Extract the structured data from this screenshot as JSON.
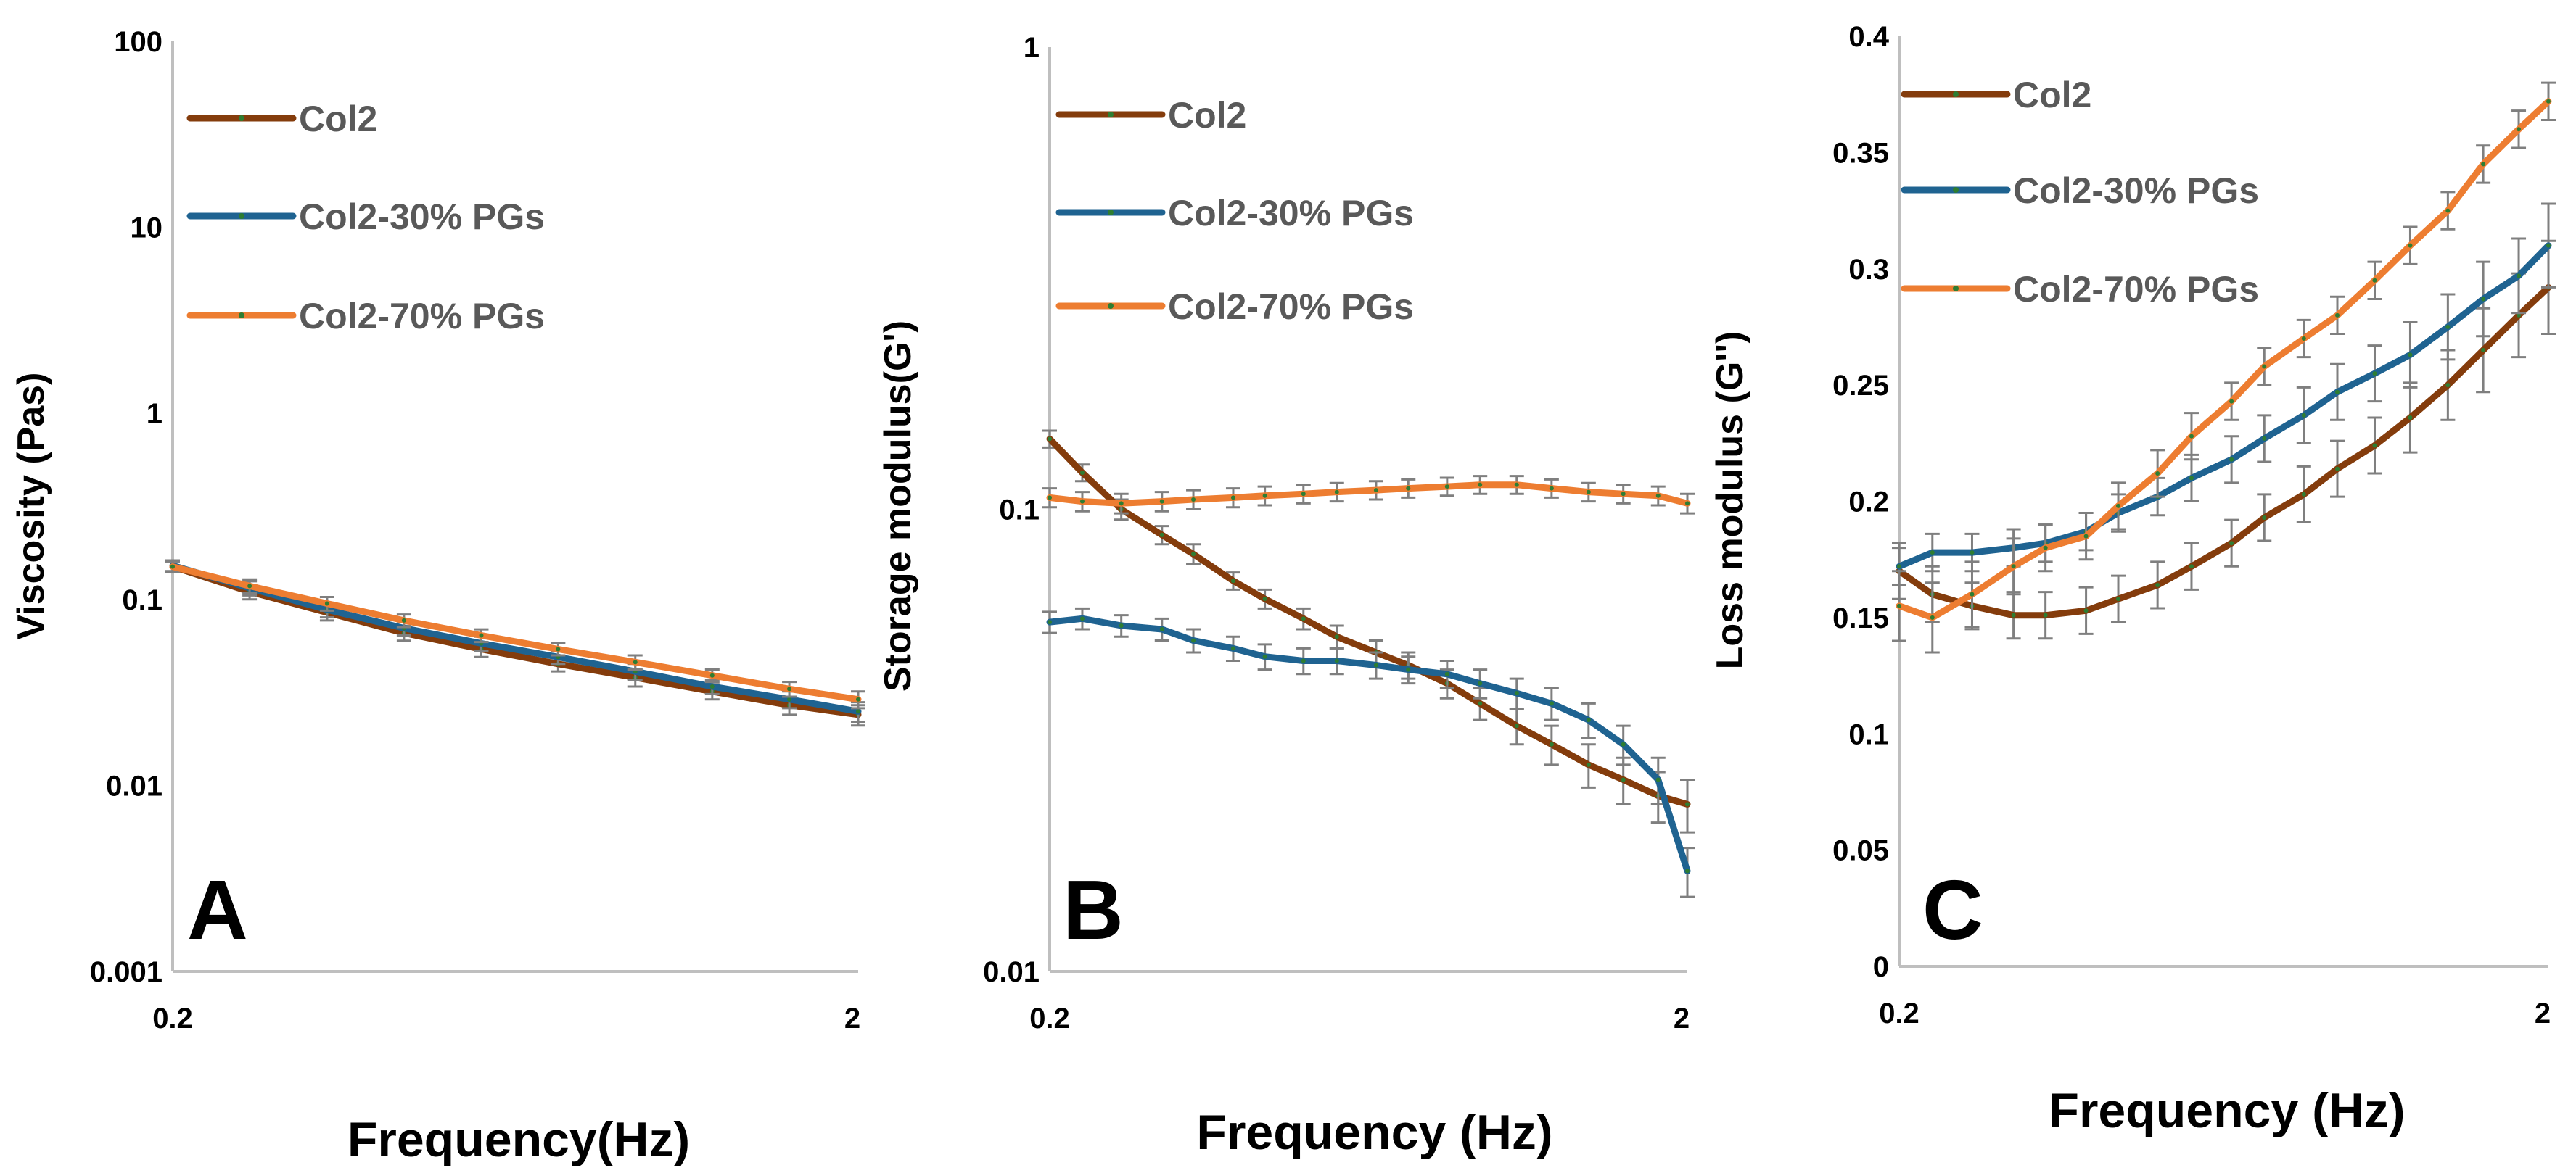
{
  "colors": {
    "Col2": "#843c0c",
    "Col2-30% PGs": "#1f6391",
    "Col2-70% PGs": "#ed7d31",
    "axis": "#bfbfbf",
    "error_bar": "#7f7f7f",
    "marker": "#2e7d32"
  },
  "chart_data": [
    {
      "type": "line",
      "panel_label": "A",
      "title": "",
      "xlabel": "Frequency(Hz)",
      "ylabel": "Viscosity (Pas)",
      "xscale": "log",
      "yscale": "log",
      "xlim": [
        0.2,
        2
      ],
      "ylim": [
        0.001,
        100
      ],
      "xticks": [
        "0.2",
        "2"
      ],
      "yticks": [
        "0.001",
        "0.01",
        "0.1",
        "1",
        "10",
        "100"
      ],
      "legend": [
        "Col2",
        "Col2-30% PGs",
        "Col2-70% PGs"
      ],
      "legend_position": "top-left",
      "x": [
        0.2,
        0.259,
        0.336,
        0.435,
        0.564,
        0.73,
        0.946,
        1.225,
        1.587,
        2.0
      ],
      "series": [
        {
          "name": "Col2",
          "values": [
            0.15,
            0.11,
            0.085,
            0.066,
            0.054,
            0.045,
            0.038,
            0.032,
            0.027,
            0.024
          ],
          "error": [
            0.01,
            0.01,
            0.008,
            0.006,
            0.005,
            0.004,
            0.004,
            0.003,
            0.003,
            0.003
          ]
        },
        {
          "name": "Col2-30% PGs",
          "values": [
            0.152,
            0.115,
            0.088,
            0.07,
            0.058,
            0.049,
            0.041,
            0.034,
            0.029,
            0.025
          ],
          "error": [
            0.01,
            0.01,
            0.008,
            0.006,
            0.005,
            0.004,
            0.004,
            0.003,
            0.003,
            0.003
          ]
        },
        {
          "name": "Col2-70% PGs",
          "values": [
            0.15,
            0.118,
            0.095,
            0.077,
            0.064,
            0.054,
            0.046,
            0.039,
            0.033,
            0.029
          ],
          "error": [
            0.01,
            0.01,
            0.008,
            0.006,
            0.005,
            0.004,
            0.004,
            0.003,
            0.003,
            0.003
          ]
        }
      ]
    },
    {
      "type": "line",
      "panel_label": "B",
      "title": "",
      "xlabel": "Frequency (Hz)",
      "ylabel": "Storage modulus(G')",
      "xscale": "log",
      "yscale": "log",
      "xlim": [
        0.2,
        2
      ],
      "ylim": [
        0.01,
        1
      ],
      "xticks": [
        "0.2",
        "2"
      ],
      "yticks": [
        "0.01",
        "0.1",
        "1"
      ],
      "legend": [
        "Col2",
        "Col2-30% PGs",
        "Col2-70% PGs"
      ],
      "legend_position": "top-left",
      "x": [
        0.2,
        0.225,
        0.259,
        0.3,
        0.336,
        0.388,
        0.435,
        0.5,
        0.564,
        0.65,
        0.73,
        0.84,
        0.946,
        1.08,
        1.225,
        1.4,
        1.587,
        1.8,
        2.0
      ],
      "series": [
        {
          "name": "Col2",
          "values": [
            0.142,
            0.12,
            0.1,
            0.088,
            0.08,
            0.07,
            0.064,
            0.058,
            0.053,
            0.049,
            0.046,
            0.042,
            0.038,
            0.034,
            0.031,
            0.028,
            0.026,
            0.024,
            0.023
          ],
          "error": [
            0.006,
            0.005,
            0.005,
            0.004,
            0.004,
            0.003,
            0.003,
            0.003,
            0.003,
            0.003,
            0.003,
            0.003,
            0.003,
            0.003,
            0.003,
            0.003,
            0.003,
            0.003,
            0.003
          ]
        },
        {
          "name": "Col2-30% PGs",
          "values": [
            0.057,
            0.058,
            0.056,
            0.055,
            0.052,
            0.05,
            0.048,
            0.047,
            0.047,
            0.046,
            0.045,
            0.044,
            0.042,
            0.04,
            0.038,
            0.035,
            0.031,
            0.026,
            0.0165
          ],
          "error": [
            0.003,
            0.003,
            0.003,
            0.003,
            0.003,
            0.003,
            0.003,
            0.003,
            0.003,
            0.003,
            0.003,
            0.003,
            0.003,
            0.003,
            0.003,
            0.003,
            0.003,
            0.003,
            0.002
          ]
        },
        {
          "name": "Col2-70% PGs",
          "values": [
            0.106,
            0.104,
            0.103,
            0.104,
            0.105,
            0.106,
            0.107,
            0.108,
            0.109,
            0.11,
            0.111,
            0.112,
            0.113,
            0.113,
            0.111,
            0.109,
            0.108,
            0.107,
            0.103
          ],
          "error": [
            0.005,
            0.005,
            0.005,
            0.005,
            0.005,
            0.005,
            0.005,
            0.005,
            0.005,
            0.005,
            0.005,
            0.005,
            0.005,
            0.005,
            0.005,
            0.005,
            0.005,
            0.005,
            0.005
          ]
        }
      ]
    },
    {
      "type": "line",
      "panel_label": "C",
      "title": "",
      "xlabel": "Frequency (Hz)",
      "ylabel": "Loss modulus (G'')",
      "xscale": "log",
      "yscale": "linear",
      "xlim": [
        0.2,
        2
      ],
      "ylim": [
        0,
        0.4
      ],
      "xticks": [
        "0.2",
        "2"
      ],
      "yticks": [
        "0",
        "0.05",
        "0.1",
        "0.15",
        "0.2",
        "0.25",
        "0.3",
        "0.35",
        "0.4"
      ],
      "legend": [
        "Col2",
        "Col2-30% PGs",
        "Col2-70% PGs"
      ],
      "legend_position": "top-left",
      "x": [
        0.2,
        0.225,
        0.259,
        0.3,
        0.336,
        0.388,
        0.435,
        0.5,
        0.564,
        0.65,
        0.73,
        0.84,
        0.946,
        1.08,
        1.225,
        1.4,
        1.587,
        1.8,
        2.0
      ],
      "series": [
        {
          "name": "Col2",
          "values": [
            0.17,
            0.16,
            0.155,
            0.151,
            0.151,
            0.153,
            0.158,
            0.164,
            0.172,
            0.182,
            0.193,
            0.203,
            0.214,
            0.224,
            0.236,
            0.25,
            0.265,
            0.28,
            0.292
          ],
          "error": [
            0.012,
            0.012,
            0.01,
            0.01,
            0.01,
            0.01,
            0.01,
            0.01,
            0.01,
            0.01,
            0.01,
            0.012,
            0.012,
            0.012,
            0.015,
            0.015,
            0.018,
            0.018,
            0.02
          ]
        },
        {
          "name": "Col2-30% PGs",
          "values": [
            0.172,
            0.178,
            0.178,
            0.18,
            0.182,
            0.187,
            0.195,
            0.202,
            0.21,
            0.218,
            0.227,
            0.237,
            0.247,
            0.255,
            0.263,
            0.275,
            0.287,
            0.297,
            0.31
          ],
          "error": [
            0.008,
            0.008,
            0.008,
            0.008,
            0.008,
            0.008,
            0.008,
            0.008,
            0.01,
            0.01,
            0.01,
            0.012,
            0.012,
            0.012,
            0.014,
            0.014,
            0.016,
            0.016,
            0.018
          ]
        },
        {
          "name": "Col2-70% PGs",
          "values": [
            0.155,
            0.15,
            0.16,
            0.172,
            0.18,
            0.185,
            0.198,
            0.212,
            0.228,
            0.243,
            0.258,
            0.27,
            0.28,
            0.295,
            0.31,
            0.325,
            0.345,
            0.36,
            0.372
          ],
          "error": [
            0.015,
            0.015,
            0.014,
            0.012,
            0.01,
            0.01,
            0.01,
            0.01,
            0.01,
            0.008,
            0.008,
            0.008,
            0.008,
            0.008,
            0.008,
            0.008,
            0.008,
            0.008,
            0.008
          ]
        }
      ]
    }
  ]
}
